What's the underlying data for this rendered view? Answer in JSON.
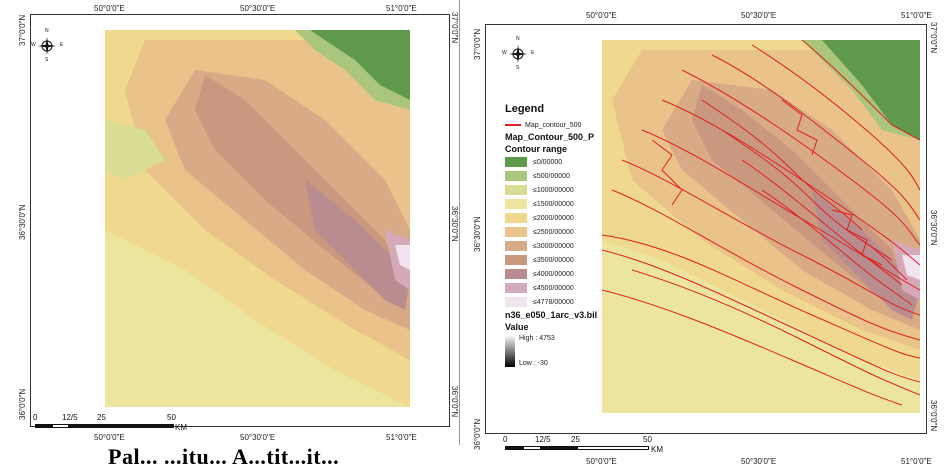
{
  "colors": {
    "elev_0": "#5f9a4c",
    "elev_500": "#a9c67c",
    "elev_1000": "#d8dc95",
    "elev_1500": "#ebe59e",
    "elev_2000": "#f0d98e",
    "elev_2500": "#e9c389",
    "elev_3000": "#d8aa85",
    "elev_3500": "#c9987e",
    "elev_4000": "#b98c8f",
    "elev_4500": "#d6a9b9",
    "elev_4778": "#f2e4ef",
    "contour": "#e02020"
  },
  "left_map": {
    "top_ticks": [
      "50°0'0\"E",
      "50°30'0\"E",
      "51°0'0\"E"
    ],
    "bottom_ticks": [
      "50°0'0\"E",
      "50°30'0\"E",
      "51°0'0\"E"
    ],
    "left_ticks": [
      "37°0'0\"N",
      "36°30'0\"N",
      "36°0'0\"N"
    ],
    "right_ticks": [
      "37°0'0\"N",
      "36°30'0\"N",
      "36°0'0\"N"
    ],
    "scale": {
      "labels": [
        "0",
        "12/5",
        "25",
        "50"
      ],
      "unit": "KM"
    },
    "north": {
      "n": "N",
      "s": "S",
      "e": "E",
      "w": "W"
    }
  },
  "right_map": {
    "top_ticks": [
      "50°0'0\"E",
      "50°30'0\"E",
      "51°0'0\"E"
    ],
    "bottom_ticks": [
      "50°0'0\"E",
      "50°30'0\"E",
      "51°0'0\"E"
    ],
    "left_ticks": [
      "37°0'0\"N",
      "36°30'0\"N",
      "36°0'0\"N"
    ],
    "right_ticks": [
      "37°0'0\"N",
      "36°30'0\"N",
      "36°0'0\"N"
    ],
    "scale": {
      "labels": [
        "0",
        "12/5",
        "25",
        "50"
      ],
      "unit": "KM"
    },
    "north": {
      "n": "N",
      "s": "S",
      "e": "E",
      "w": "W"
    }
  },
  "legend": {
    "title": "Legend",
    "line_label": "Map_contour_500",
    "layer_name": "Map_Contour_500_P",
    "range_title": "Contour range",
    "classes": [
      {
        "label": "≤0/00000",
        "color_key": "elev_0"
      },
      {
        "label": "≤500/00000",
        "color_key": "elev_500"
      },
      {
        "label": "≤1000/00000",
        "color_key": "elev_1000"
      },
      {
        "label": "≤1500/00000",
        "color_key": "elev_1500"
      },
      {
        "label": "≤2000/00000",
        "color_key": "elev_2000"
      },
      {
        "label": "≤2500/00000",
        "color_key": "elev_2500"
      },
      {
        "label": "≤3000/00000",
        "color_key": "elev_3000"
      },
      {
        "label": "≤3500/00000",
        "color_key": "elev_3500"
      },
      {
        "label": "≤4000/00000",
        "color_key": "elev_4000"
      },
      {
        "label": "≤4500/00000",
        "color_key": "elev_4500"
      },
      {
        "label": "≤4778/00000",
        "color_key": "elev_4778"
      }
    ],
    "raster_name": "n36_e050_1arc_v3.bil",
    "value_title": "Value",
    "high": "High : 4753",
    "low": "Low : -30"
  },
  "caption": "Pal... ...itu... A...tit...it..."
}
